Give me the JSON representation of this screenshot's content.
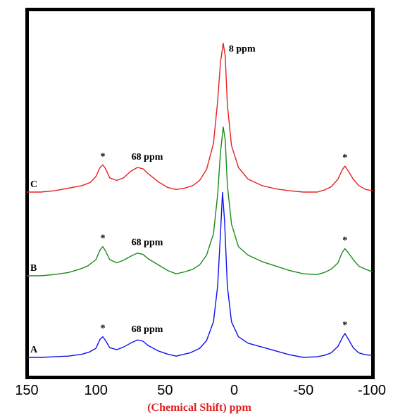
{
  "chart_data": {
    "type": "line",
    "title": "",
    "xlabel": "(Chemical Shift) ppm",
    "ylabel": "",
    "xlim": [
      150,
      -100
    ],
    "x_ticks": [
      "150",
      "100",
      "50",
      "0",
      "-50",
      "-100"
    ],
    "grid": false,
    "legend": "none",
    "series": [
      {
        "name": "A",
        "color": "#1010ee",
        "points": [
          [
            150,
            0.0
          ],
          [
            140,
            0.0
          ],
          [
            130,
            0.01
          ],
          [
            120,
            0.02
          ],
          [
            110,
            0.05
          ],
          [
            105,
            0.08
          ],
          [
            100,
            0.14
          ],
          [
            97,
            0.28
          ],
          [
            95,
            0.32
          ],
          [
            93,
            0.26
          ],
          [
            90,
            0.15
          ],
          [
            85,
            0.12
          ],
          [
            80,
            0.16
          ],
          [
            75,
            0.22
          ],
          [
            70,
            0.27
          ],
          [
            66,
            0.25
          ],
          [
            62,
            0.18
          ],
          [
            55,
            0.1
          ],
          [
            48,
            0.05
          ],
          [
            42,
            0.02
          ],
          [
            38,
            0.04
          ],
          [
            32,
            0.07
          ],
          [
            25,
            0.14
          ],
          [
            20,
            0.26
          ],
          [
            15,
            0.55
          ],
          [
            12,
            1.1
          ],
          [
            10,
            1.9
          ],
          [
            8.5,
            2.55
          ],
          [
            7,
            2.1
          ],
          [
            5,
            1.1
          ],
          [
            2,
            0.55
          ],
          [
            -3,
            0.32
          ],
          [
            -10,
            0.22
          ],
          [
            -20,
            0.16
          ],
          [
            -30,
            0.1
          ],
          [
            -40,
            0.04
          ],
          [
            -50,
            0.0
          ],
          [
            -60,
            0.01
          ],
          [
            -65,
            0.03
          ],
          [
            -70,
            0.07
          ],
          [
            -75,
            0.17
          ],
          [
            -78,
            0.3
          ],
          [
            -80,
            0.37
          ],
          [
            -82,
            0.3
          ],
          [
            -86,
            0.15
          ],
          [
            -90,
            0.07
          ],
          [
            -95,
            0.04
          ],
          [
            -100,
            0.03
          ]
        ]
      },
      {
        "name": "B",
        "color": "#1a8a1a",
        "points": [
          [
            150,
            0.0
          ],
          [
            140,
            0.0
          ],
          [
            130,
            0.02
          ],
          [
            120,
            0.05
          ],
          [
            112,
            0.1
          ],
          [
            106,
            0.15
          ],
          [
            100,
            0.25
          ],
          [
            97,
            0.4
          ],
          [
            95,
            0.45
          ],
          [
            93,
            0.38
          ],
          [
            90,
            0.25
          ],
          [
            85,
            0.2
          ],
          [
            80,
            0.24
          ],
          [
            75,
            0.3
          ],
          [
            70,
            0.35
          ],
          [
            66,
            0.33
          ],
          [
            62,
            0.26
          ],
          [
            55,
            0.17
          ],
          [
            48,
            0.08
          ],
          [
            42,
            0.03
          ],
          [
            36,
            0.06
          ],
          [
            30,
            0.1
          ],
          [
            25,
            0.17
          ],
          [
            20,
            0.32
          ],
          [
            15,
            0.65
          ],
          [
            12,
            1.25
          ],
          [
            10,
            1.9
          ],
          [
            8,
            2.3
          ],
          [
            6.5,
            2.1
          ],
          [
            5,
            1.4
          ],
          [
            2,
            0.8
          ],
          [
            -3,
            0.45
          ],
          [
            -10,
            0.32
          ],
          [
            -20,
            0.22
          ],
          [
            -30,
            0.15
          ],
          [
            -40,
            0.08
          ],
          [
            -50,
            0.03
          ],
          [
            -60,
            0.02
          ],
          [
            -65,
            0.05
          ],
          [
            -70,
            0.1
          ],
          [
            -75,
            0.2
          ],
          [
            -78,
            0.36
          ],
          [
            -80,
            0.42
          ],
          [
            -82,
            0.37
          ],
          [
            -86,
            0.25
          ],
          [
            -90,
            0.15
          ],
          [
            -95,
            0.1
          ],
          [
            -100,
            0.06
          ]
        ]
      },
      {
        "name": "C",
        "color": "#e82020",
        "points": [
          [
            150,
            0.0
          ],
          [
            140,
            0.0
          ],
          [
            130,
            0.02
          ],
          [
            120,
            0.06
          ],
          [
            110,
            0.1
          ],
          [
            104,
            0.15
          ],
          [
            100,
            0.24
          ],
          [
            97,
            0.38
          ],
          [
            95,
            0.42
          ],
          [
            93,
            0.36
          ],
          [
            90,
            0.22
          ],
          [
            85,
            0.18
          ],
          [
            80,
            0.22
          ],
          [
            75,
            0.32
          ],
          [
            70,
            0.38
          ],
          [
            66,
            0.36
          ],
          [
            62,
            0.28
          ],
          [
            55,
            0.16
          ],
          [
            48,
            0.07
          ],
          [
            42,
            0.04
          ],
          [
            36,
            0.06
          ],
          [
            30,
            0.1
          ],
          [
            25,
            0.18
          ],
          [
            20,
            0.35
          ],
          [
            15,
            0.75
          ],
          [
            12,
            1.4
          ],
          [
            10,
            2.0
          ],
          [
            8,
            2.3
          ],
          [
            6.5,
            2.1
          ],
          [
            5,
            1.35
          ],
          [
            2,
            0.72
          ],
          [
            -3,
            0.38
          ],
          [
            -10,
            0.2
          ],
          [
            -20,
            0.1
          ],
          [
            -30,
            0.05
          ],
          [
            -40,
            0.02
          ],
          [
            -50,
            0.0
          ],
          [
            -60,
            0.0
          ],
          [
            -65,
            0.03
          ],
          [
            -70,
            0.08
          ],
          [
            -75,
            0.2
          ],
          [
            -78,
            0.34
          ],
          [
            -80,
            0.4
          ],
          [
            -82,
            0.34
          ],
          [
            -86,
            0.2
          ],
          [
            -90,
            0.1
          ],
          [
            -95,
            0.04
          ],
          [
            -100,
            0.02
          ]
        ]
      }
    ],
    "annotations": [
      {
        "series": "C",
        "text": "8 ppm",
        "x": 8
      },
      {
        "series": "C",
        "text": "68 ppm",
        "x": 68
      },
      {
        "series": "B",
        "text": "68 ppm",
        "x": 68
      },
      {
        "series": "A",
        "text": "68 ppm",
        "x": 68
      },
      {
        "series": "A",
        "text": "*",
        "x": 95
      },
      {
        "series": "A",
        "text": "*",
        "x": -80
      },
      {
        "series": "B",
        "text": "*",
        "x": 95
      },
      {
        "series": "B",
        "text": "*",
        "x": -80
      },
      {
        "series": "C",
        "text": "*",
        "x": 95
      },
      {
        "series": "C",
        "text": "*",
        "x": -80
      }
    ]
  }
}
